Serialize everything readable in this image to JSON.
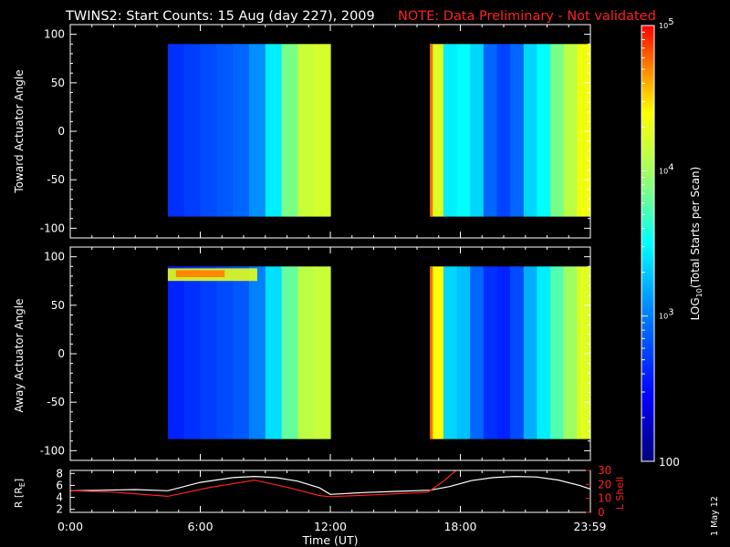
{
  "title": {
    "main": "TWINS2: Start Counts: 15 Aug (day 227), 2009",
    "note": "NOTE: Data Preliminary - Not validated",
    "note_color": "#ff2020"
  },
  "side_stamp": "1 May 12",
  "chart_data": [
    {
      "type": "heatmap",
      "ylabel": "Toward Actuator Angle",
      "ylim": [
        -110,
        110
      ],
      "yticks": [
        "100",
        "50",
        "0",
        "-50",
        "-100"
      ],
      "ytick_values": [
        100,
        50,
        0,
        -50,
        -100
      ],
      "x_hours_range": [
        0,
        24
      ],
      "data_blocks_hours": [
        [
          4.5,
          12.0
        ],
        [
          16.6,
          24.0
        ]
      ],
      "angle_range": [
        -88,
        90
      ],
      "relative_intensity_profile_block1": [
        0.22,
        0.24,
        0.26,
        0.28,
        0.3,
        0.36,
        0.48,
        0.62,
        0.72,
        0.74
      ],
      "relative_intensity_profile_block2": [
        0.75,
        0.48,
        0.5,
        0.45,
        0.3,
        0.25,
        0.3,
        0.45,
        0.5,
        0.62,
        0.7,
        0.78
      ]
    },
    {
      "type": "heatmap",
      "ylabel": "Away Actuator Angle",
      "ylim": [
        -110,
        110
      ],
      "yticks": [
        "100",
        "50",
        "0",
        "-50",
        "-100"
      ],
      "ytick_values": [
        100,
        50,
        0,
        -50,
        -100
      ],
      "x_hours_range": [
        0,
        24
      ],
      "data_blocks_hours": [
        [
          4.5,
          12.0
        ],
        [
          16.6,
          24.0
        ]
      ],
      "angle_range": [
        -88,
        90
      ],
      "relative_intensity_profile_block1": [
        0.2,
        0.22,
        0.24,
        0.26,
        0.28,
        0.34,
        0.46,
        0.6,
        0.7,
        0.72
      ],
      "relative_intensity_profile_block2": [
        0.8,
        0.45,
        0.42,
        0.3,
        0.22,
        0.2,
        0.26,
        0.4,
        0.48,
        0.58,
        0.66,
        0.75
      ],
      "hot_band_angles": [
        75,
        88
      ]
    },
    {
      "type": "line",
      "ylabel_left": "R [R",
      "ylabel_left_sub": "E",
      "ylabel_left_end": "]",
      "ylabel_right": "L Shell",
      "yticks_left": [
        "8",
        "6",
        "4",
        "2"
      ],
      "ytick_values_left": [
        8,
        6,
        4,
        2
      ],
      "ylim_left": [
        1.5,
        8.5
      ],
      "yticks_right": [
        "30",
        "20",
        "10",
        "0"
      ],
      "ytick_values_right": [
        30,
        20,
        10,
        0
      ],
      "ylim_right": [
        0,
        30
      ],
      "x_ticks": [
        "0:00",
        "6:00",
        "12:00",
        "18:00",
        "23:59"
      ],
      "x_tick_hours": [
        0,
        6,
        12,
        18,
        23.98
      ],
      "xlabel": "Time (UT)",
      "series": [
        {
          "color": "#ffffff",
          "x": [
            0,
            1.5,
            3,
            4.5,
            6,
            7.5,
            8.5,
            9.5,
            10.5,
            11.5,
            12,
            13.5,
            15,
            16.6,
            17.5,
            18.5,
            19.5,
            20.5,
            21.5,
            22.5,
            23.5,
            24
          ],
          "y": [
            5.1,
            5.2,
            5.3,
            5.1,
            6.5,
            7.3,
            7.5,
            7.3,
            6.7,
            5.6,
            4.5,
            4.8,
            5.0,
            5.2,
            5.8,
            6.8,
            7.3,
            7.5,
            7.4,
            6.9,
            6.0,
            5.4
          ]
        },
        {
          "color": "#ff2020",
          "axis": "right",
          "x": [
            0,
            2,
            4.5,
            6.5,
            8.5,
            10,
            11.5,
            12,
            14,
            16.5,
            17.2,
            17.8
          ],
          "y": [
            15.5,
            14.5,
            11.5,
            18,
            23,
            18,
            12,
            11.2,
            12.5,
            14.5,
            22,
            31
          ]
        }
      ]
    }
  ],
  "colorbar": {
    "label_prefix": "LOG",
    "label_sub": "10",
    "label_rest": "(Total Starts per Scan)",
    "ticks": [
      {
        "base": "10",
        "exp": "5",
        "v": 5
      },
      {
        "base": "10",
        "exp": "4",
        "v": 4
      },
      {
        "base": "10",
        "exp": "3",
        "v": 3
      },
      {
        "base": "100",
        "exp": "",
        "v": 2
      }
    ],
    "range": [
      2,
      5
    ]
  }
}
